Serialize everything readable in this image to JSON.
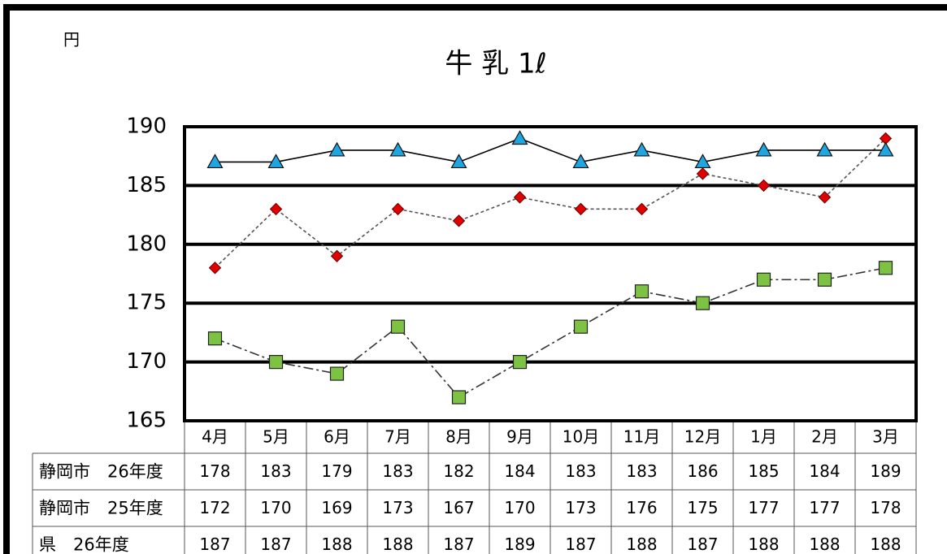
{
  "chart_data": {
    "type": "line",
    "title": "牛 乳 1ℓ",
    "y_unit": "円",
    "categories": [
      "4月",
      "5月",
      "6月",
      "7月",
      "8月",
      "9月",
      "10月",
      "11月",
      "12月",
      "1月",
      "2月",
      "3月"
    ],
    "series": [
      {
        "name": "静岡市　26年度",
        "color": "#e00000",
        "marker": "diamond",
        "line_style": "dashed",
        "values": [
          178,
          183,
          179,
          183,
          182,
          184,
          183,
          183,
          186,
          185,
          184,
          189
        ]
      },
      {
        "name": "静岡市　25年度",
        "color": "#7dc242",
        "marker": "square",
        "line_style": "dashdot",
        "values": [
          172,
          170,
          169,
          173,
          167,
          170,
          173,
          176,
          175,
          177,
          177,
          178
        ]
      },
      {
        "name": "県　26年度",
        "color": "#1fa5e0",
        "marker": "triangle",
        "line_style": "solid",
        "values": [
          187,
          187,
          188,
          188,
          187,
          189,
          187,
          188,
          187,
          188,
          188,
          188
        ]
      }
    ],
    "ylim": [
      165,
      190
    ],
    "yticks": [
      165,
      170,
      175,
      180,
      185,
      190
    ],
    "grid": true
  }
}
